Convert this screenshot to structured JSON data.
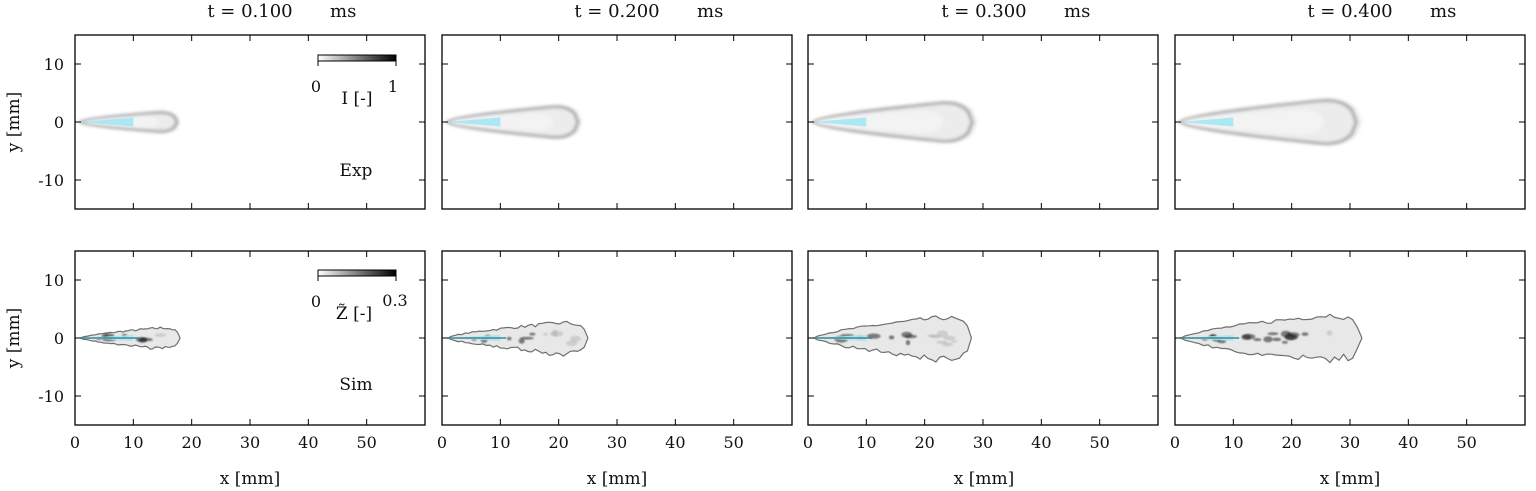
{
  "chart_data": {
    "type": "image-grid",
    "times": [
      {
        "label": "t = 0.100",
        "unit": "ms"
      },
      {
        "label": "t = 0.200",
        "unit": "ms"
      },
      {
        "label": "t = 0.300",
        "unit": "ms"
      },
      {
        "label": "t = 0.400",
        "unit": "ms"
      }
    ],
    "rows": [
      {
        "name": "Exp",
        "colorbar_label": "I [-]",
        "colorbar_min": "0",
        "colorbar_max": "1",
        "colorbar_range": [
          0,
          1
        ]
      },
      {
        "name": "Sim",
        "colorbar_label": "Z̃ [-]",
        "colorbar_min": "0",
        "colorbar_max": "0.3",
        "colorbar_range": [
          0,
          0.3
        ]
      }
    ],
    "xlabel": "x [mm]",
    "ylabel": "y [mm]",
    "xlim": [
      0,
      60
    ],
    "ylim": [
      -15,
      15
    ],
    "xticks": [
      0,
      10,
      20,
      30,
      40,
      50
    ],
    "xtick_labels": [
      "0",
      "10",
      "20",
      "30",
      "40",
      "50"
    ],
    "yticks": [
      10,
      0,
      -10
    ],
    "ytick_labels": [
      "10",
      "0",
      "-10"
    ],
    "exp_penetration_mm": [
      18,
      24,
      29,
      32
    ],
    "exp_halfwidth_mm": [
      2,
      3.2,
      4,
      4.5
    ],
    "sim_penetration_mm": [
      18,
      25,
      28,
      32
    ],
    "sim_halfwidth_mm": [
      2,
      3,
      4,
      4.5
    ],
    "liquid_length_mm": 10,
    "colors": {
      "liquid": "#a8e6f2",
      "contour": "#6f6f6f",
      "dark": "#1e1e1e"
    }
  }
}
